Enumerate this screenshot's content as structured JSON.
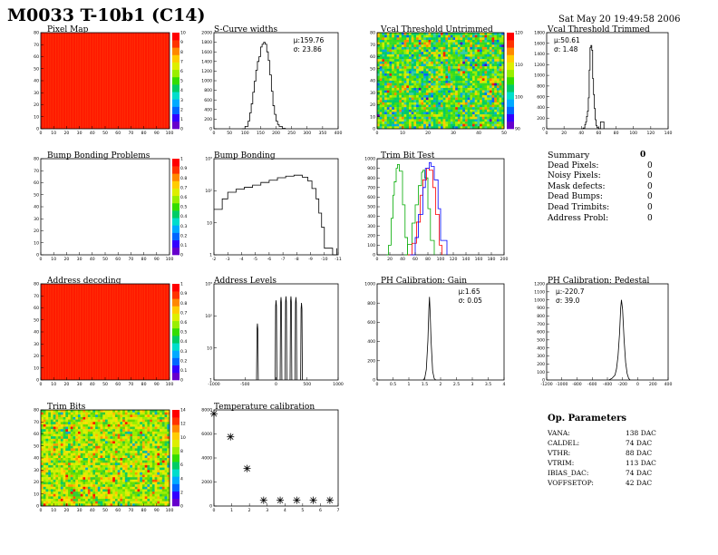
{
  "title": "M0033 T-10b1 (C14)",
  "date": "Sat May 20 19:49:58 2006",
  "colors": {
    "map_red": "#ff1a00",
    "curve": "#000000",
    "trim_green": "#00aa00",
    "trim_red": "#ff0000",
    "trim_blue": "#0000ff"
  },
  "pixel_map": {
    "title": "Pixel Map",
    "x_ticks": [
      "0",
      "10",
      "20",
      "30",
      "40",
      "50",
      "60",
      "70",
      "80",
      "90",
      "100"
    ],
    "y_ticks": [
      "0",
      "10",
      "20",
      "30",
      "40",
      "50",
      "60",
      "70",
      "80"
    ],
    "z_ticks": [
      "0",
      "1",
      "2",
      "3",
      "4",
      "5",
      "6",
      "7",
      "8",
      "9",
      "10"
    ]
  },
  "scurve": {
    "title": "S-Curve widths",
    "stats": [
      "μ:159.76",
      "σ: 23.86"
    ],
    "x_ticks": [
      "0",
      "50",
      "100",
      "150",
      "200",
      "250",
      "300",
      "350",
      "400"
    ],
    "y_ticks": [
      "0",
      "200",
      "400",
      "600",
      "800",
      "1000",
      "1200",
      "1400",
      "1600",
      "1800",
      "2000"
    ]
  },
  "vcal_untrimmed": {
    "title": "Vcal Threshold Untrimmed",
    "x_ticks": [
      "0",
      "10",
      "20",
      "30",
      "40",
      "50"
    ],
    "y_ticks": [
      "0",
      "10",
      "20",
      "30",
      "40",
      "50",
      "60",
      "70",
      "80"
    ],
    "z_ticks": [
      "90",
      "100",
      "110",
      "120"
    ]
  },
  "vcal_trimmed": {
    "title": "Vcal Threshold Trimmed",
    "stats": [
      "μ:50.61",
      "σ: 1.48"
    ],
    "x_ticks": [
      "0",
      "20",
      "40",
      "60",
      "80",
      "100",
      "120",
      "140"
    ],
    "y_ticks": [
      "0",
      "200",
      "400",
      "600",
      "800",
      "1000",
      "1200",
      "1400",
      "1600",
      "1800"
    ]
  },
  "bump_problems": {
    "title": "Bump Bonding Problems",
    "x_ticks": [
      "0",
      "10",
      "20",
      "30",
      "40",
      "50",
      "60",
      "70",
      "80",
      "90",
      "100"
    ],
    "y_ticks": [
      "0",
      "10",
      "20",
      "30",
      "40",
      "50",
      "60",
      "70",
      "80"
    ],
    "z_ticks": [
      "0",
      "0.1",
      "0.2",
      "0.3",
      "0.4",
      "0.5",
      "0.6",
      "0.7",
      "0.8",
      "0.9",
      "1"
    ]
  },
  "bump_bonding": {
    "title": "Bump Bonding",
    "x_ticks": [
      "-2",
      "-3",
      "-4",
      "-5",
      "-6",
      "-7",
      "-8",
      "-9",
      "-10",
      "-11"
    ],
    "y_ticks": [
      "1",
      "10",
      "10²",
      "10³"
    ]
  },
  "trim_bit_test": {
    "title": "Trim Bit Test",
    "x_ticks": [
      "0",
      "20",
      "40",
      "60",
      "80",
      "100",
      "120",
      "140",
      "160",
      "180",
      "200"
    ],
    "y_ticks": [
      "0",
      "100",
      "200",
      "300",
      "400",
      "500",
      "600",
      "700",
      "800",
      "900",
      "1000"
    ]
  },
  "summary": {
    "title": "Summary",
    "count": "0",
    "items": [
      {
        "label": "Dead Pixels:",
        "value": "0"
      },
      {
        "label": "Noisy Pixels:",
        "value": "0"
      },
      {
        "label": "Mask defects:",
        "value": "0"
      },
      {
        "label": "Dead Bumps:",
        "value": "0"
      },
      {
        "label": "Dead Trimbits:",
        "value": "0"
      },
      {
        "label": "Address Probl:",
        "value": "0"
      }
    ]
  },
  "address_decoding": {
    "title": "Address decoding",
    "x_ticks": [
      "0",
      "10",
      "20",
      "30",
      "40",
      "50",
      "60",
      "70",
      "80",
      "90",
      "100"
    ],
    "y_ticks": [
      "0",
      "10",
      "20",
      "30",
      "40",
      "50",
      "60",
      "70",
      "80"
    ],
    "z_ticks": [
      "0",
      "0.1",
      "0.2",
      "0.3",
      "0.4",
      "0.5",
      "0.6",
      "0.7",
      "0.8",
      "0.9",
      "1"
    ]
  },
  "address_levels": {
    "title": "Address Levels",
    "x_ticks": [
      "-1000",
      "-500",
      "0",
      "500",
      "1000"
    ],
    "y_ticks": [
      "1",
      "10",
      "10²",
      "10³"
    ]
  },
  "ph_gain": {
    "title": "PH Calibration: Gain",
    "stats": [
      "μ:1.65",
      "σ: 0.05"
    ],
    "x_ticks": [
      "0",
      "0.5",
      "1",
      "1.5",
      "2",
      "2.5",
      "3",
      "3.5",
      "4"
    ],
    "y_ticks": [
      "0",
      "200",
      "400",
      "600",
      "800",
      "1000"
    ]
  },
  "ph_pedestal": {
    "title": "PH Calibration: Pedestal",
    "stats": [
      "μ:-220.7",
      "σ: 39.0"
    ],
    "x_ticks": [
      "-1200",
      "-1000",
      "-800",
      "-600",
      "-400",
      "-200",
      "0",
      "200",
      "400"
    ],
    "y_ticks": [
      "0",
      "100",
      "200",
      "300",
      "400",
      "500",
      "600",
      "700",
      "800",
      "900",
      "1000",
      "1100",
      "1200"
    ]
  },
  "trim_bits": {
    "title": "Trim Bits",
    "x_ticks": [
      "0",
      "10",
      "20",
      "30",
      "40",
      "50",
      "60",
      "70",
      "80",
      "90",
      "100"
    ],
    "y_ticks": [
      "0",
      "10",
      "20",
      "30",
      "40",
      "50",
      "60",
      "70",
      "80"
    ],
    "z_ticks": [
      "0",
      "2",
      "4",
      "6",
      "8",
      "10",
      "12",
      "14"
    ]
  },
  "temperature": {
    "title": "Temperature calibration",
    "x_ticks": [
      "0",
      "1",
      "2",
      "3",
      "4",
      "5",
      "6",
      "7"
    ],
    "y_ticks": [
      "0",
      "2000",
      "4000",
      "6000",
      "8000"
    ]
  },
  "op_params": {
    "title": "Op. Parameters",
    "items": [
      {
        "label": "VANA:",
        "value": "138 DAC"
      },
      {
        "label": "CALDEL:",
        "value": "74 DAC"
      },
      {
        "label": "VTHR:",
        "value": "88 DAC"
      },
      {
        "label": "VTRIM:",
        "value": "113 DAC"
      },
      {
        "label": "IBIAS_DAC:",
        "value": "74 DAC"
      },
      {
        "label": "VOFFSETOP:",
        "value": "42 DAC"
      }
    ]
  },
  "chart_data": [
    {
      "type": "heatmap",
      "title": "Pixel Map",
      "xlim": [
        0,
        52
      ],
      "ylim": [
        0,
        80
      ],
      "zlim": [
        0,
        10
      ],
      "uniform_value": 10
    },
    {
      "type": "line",
      "title": "S-Curve widths",
      "xlim": [
        0,
        400
      ],
      "ylim": [
        0,
        2000
      ],
      "x": [
        90,
        100,
        110,
        115,
        120,
        125,
        130,
        135,
        140,
        145,
        150,
        155,
        160,
        165,
        170,
        175,
        180,
        185,
        190,
        195,
        200,
        205,
        210,
        220,
        230
      ],
      "y": [
        0,
        50,
        160,
        330,
        520,
        760,
        990,
        1220,
        1400,
        1500,
        1700,
        1760,
        1800,
        1760,
        1600,
        1420,
        1120,
        780,
        480,
        300,
        160,
        90,
        50,
        10,
        0
      ]
    },
    {
      "type": "heatmap",
      "title": "Vcal Threshold Untrimmed",
      "xlim": [
        0,
        52
      ],
      "ylim": [
        0,
        80
      ],
      "zlim": [
        85,
        125
      ]
    },
    {
      "type": "line",
      "title": "Vcal Threshold Trimmed",
      "xlim": [
        0,
        140
      ],
      "ylim": [
        0,
        1800
      ],
      "x": [
        40,
        42,
        44,
        45,
        46,
        47,
        48,
        49,
        50,
        51,
        52,
        53,
        54,
        55,
        56,
        57,
        58,
        60,
        62,
        64,
        66
      ],
      "y": [
        0,
        15,
        80,
        130,
        230,
        330,
        580,
        1100,
        1520,
        1560,
        1470,
        940,
        640,
        380,
        170,
        60,
        20,
        0,
        130,
        130,
        0
      ]
    },
    {
      "type": "heatmap",
      "title": "Bump Bonding Problems",
      "xlim": [
        0,
        52
      ],
      "ylim": [
        0,
        80
      ],
      "zlim": [
        0,
        1
      ]
    },
    {
      "type": "line",
      "title": "Bump Bonding",
      "yscale": "log",
      "xlim": [
        -2,
        -11
      ],
      "ylim": [
        0.6,
        1000
      ],
      "x": [
        -2.0,
        -2.6,
        -3.0,
        -3.6,
        -4.2,
        -4.8,
        -5.4,
        -6.0,
        -6.6,
        -7.2,
        -7.8,
        -8.4,
        -8.8,
        -9.1,
        -9.4,
        -9.6,
        -9.8,
        -10.0,
        -10.3,
        -10.6,
        -10.9
      ],
      "y": [
        20,
        45,
        75,
        95,
        110,
        130,
        160,
        190,
        230,
        260,
        280,
        240,
        180,
        100,
        45,
        15,
        5,
        1,
        1,
        0.6,
        1
      ]
    },
    {
      "type": "line",
      "title": "Trim Bit Test",
      "xlim": [
        0,
        200
      ],
      "ylim": [
        0,
        1000
      ],
      "series": [
        {
          "x": [
            15,
            18,
            22,
            25,
            27,
            30,
            32,
            35,
            40,
            44,
            48
          ],
          "y": [
            0,
            100,
            380,
            620,
            760,
            900,
            940,
            870,
            520,
            180,
            0
          ]
        },
        {
          "x": [
            43,
            48,
            55,
            60,
            65,
            70,
            72,
            75,
            80,
            84,
            90
          ],
          "y": [
            0,
            110,
            330,
            520,
            720,
            860,
            880,
            800,
            480,
            150,
            0
          ]
        },
        {
          "x": [
            48,
            55,
            62,
            68,
            72,
            78,
            82,
            88,
            92,
            98,
            102
          ],
          "y": [
            0,
            120,
            340,
            620,
            780,
            900,
            880,
            700,
            420,
            100,
            0
          ]
        },
        {
          "x": [
            52,
            60,
            65,
            72,
            76,
            82,
            85,
            90,
            96,
            100,
            110
          ],
          "y": [
            0,
            180,
            420,
            700,
            900,
            960,
            920,
            780,
            480,
            150,
            0
          ]
        }
      ]
    },
    {
      "type": "heatmap",
      "title": "Address decoding",
      "xlim": [
        0,
        52
      ],
      "ylim": [
        0,
        80
      ],
      "zlim": [
        0,
        1
      ],
      "uniform_value": 1
    },
    {
      "type": "line",
      "title": "Address Levels",
      "yscale": "log",
      "xlim": [
        -1000,
        1000
      ],
      "ylim": [
        0.6,
        2000
      ],
      "peaks": [
        -300,
        0,
        80,
        160,
        240,
        320,
        410
      ],
      "peak_heights": [
        70,
        500,
        650,
        700,
        700,
        650,
        400
      ]
    },
    {
      "type": "line",
      "title": "PH Calibration: Gain",
      "xlim": [
        0,
        4
      ],
      "ylim": [
        0,
        1100
      ],
      "x": [
        1.45,
        1.5,
        1.55,
        1.6,
        1.63,
        1.65,
        1.67,
        1.7,
        1.75,
        1.8,
        1.85
      ],
      "y": [
        0,
        20,
        120,
        450,
        800,
        950,
        780,
        450,
        100,
        15,
        0
      ]
    },
    {
      "type": "line",
      "title": "PH Calibration: Pedestal",
      "xlim": [
        -1200,
        400
      ],
      "ylim": [
        0,
        1200
      ],
      "x": [
        -380,
        -340,
        -300,
        -280,
        -260,
        -240,
        -225,
        -215,
        -200,
        -180,
        -160,
        -140,
        -120,
        -100
      ],
      "y": [
        0,
        20,
        60,
        140,
        300,
        580,
        900,
        1000,
        880,
        500,
        220,
        80,
        20,
        0
      ]
    },
    {
      "type": "heatmap",
      "title": "Trim Bits",
      "xlim": [
        0,
        52
      ],
      "ylim": [
        0,
        80
      ],
      "zlim": [
        0,
        15
      ]
    },
    {
      "type": "scatter",
      "title": "Temperature calibration",
      "xlim": [
        0,
        7.5
      ],
      "ylim": [
        0,
        10000
      ],
      "x": [
        0,
        1,
        2,
        3,
        4,
        5,
        6,
        7
      ],
      "y": [
        9600,
        7200,
        3900,
        600,
        600,
        600,
        600,
        600
      ]
    }
  ]
}
